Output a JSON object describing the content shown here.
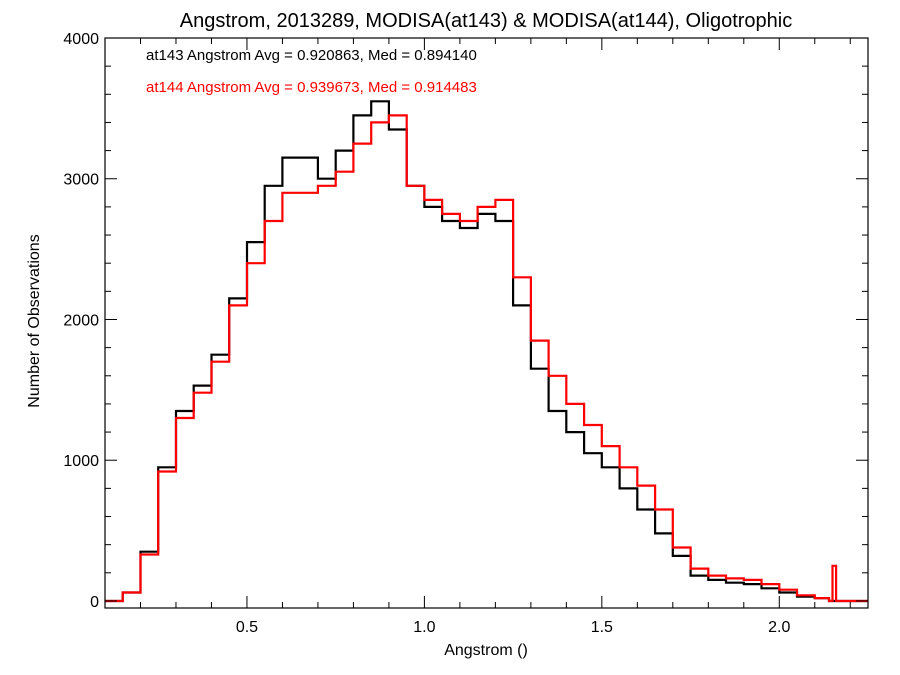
{
  "chart_data": {
    "type": "line",
    "title": "Angstrom, 2013289, MODISA(at143) & MODISA(at144), Oligotrophic",
    "xlabel": "Angstrom ()",
    "ylabel": "Number of Observations",
    "xlim": [
      0.1,
      2.25
    ],
    "ylim": [
      -50,
      4000
    ],
    "xticks": [
      0.5,
      1.0,
      1.5,
      2.0
    ],
    "xtick_labels": [
      "0.5",
      "1.0",
      "1.5",
      "2.0"
    ],
    "yticks": [
      0,
      1000,
      2000,
      3000,
      4000
    ],
    "ytick_labels": [
      "0",
      "1000",
      "2000",
      "3000",
      "4000"
    ],
    "step": true,
    "grid": false,
    "annotations": [
      {
        "text": "at143 Angstrom Avg = 0.920863, Med = 0.894140",
        "color": "#000000"
      },
      {
        "text": "at144 Angstrom Avg = 0.939673, Med = 0.914483",
        "color": "#ff0000"
      }
    ],
    "series": [
      {
        "color": "#000000",
        "x": [
          0.1,
          0.15,
          0.2,
          0.25,
          0.3,
          0.35,
          0.4,
          0.45,
          0.5,
          0.55,
          0.6,
          0.65,
          0.7,
          0.75,
          0.8,
          0.85,
          0.9,
          0.95,
          1.0,
          1.05,
          1.1,
          1.15,
          1.2,
          1.25,
          1.3,
          1.35,
          1.4,
          1.45,
          1.5,
          1.55,
          1.6,
          1.65,
          1.7,
          1.75,
          1.8,
          1.85,
          1.9,
          1.95,
          2.0,
          2.05,
          2.1,
          2.14,
          2.16,
          2.25
        ],
        "y": [
          0,
          60,
          350,
          950,
          1350,
          1530,
          1750,
          2150,
          2550,
          2950,
          3150,
          3150,
          3000,
          3200,
          3450,
          3550,
          3350,
          2950,
          2800,
          2700,
          2650,
          2750,
          2700,
          2100,
          1650,
          1350,
          1200,
          1050,
          950,
          800,
          650,
          480,
          320,
          180,
          150,
          130,
          120,
          90,
          60,
          30,
          20,
          0,
          0,
          0
        ]
      },
      {
        "color": "#ff0000",
        "x": [
          0.1,
          0.15,
          0.2,
          0.25,
          0.3,
          0.35,
          0.4,
          0.45,
          0.5,
          0.55,
          0.6,
          0.65,
          0.7,
          0.75,
          0.8,
          0.85,
          0.9,
          0.95,
          1.0,
          1.05,
          1.1,
          1.15,
          1.2,
          1.25,
          1.3,
          1.35,
          1.4,
          1.45,
          1.5,
          1.55,
          1.6,
          1.65,
          1.7,
          1.75,
          1.8,
          1.85,
          1.9,
          1.95,
          2.0,
          2.05,
          2.1,
          2.14,
          2.15,
          2.16,
          2.25
        ],
        "y": [
          0,
          60,
          330,
          920,
          1300,
          1480,
          1700,
          2100,
          2400,
          2700,
          2900,
          2900,
          2950,
          3050,
          3250,
          3400,
          3450,
          2950,
          2850,
          2750,
          2700,
          2800,
          2850,
          2300,
          1850,
          1600,
          1400,
          1250,
          1100,
          950,
          820,
          650,
          380,
          230,
          180,
          160,
          150,
          120,
          80,
          40,
          20,
          0,
          250,
          0,
          0
        ]
      }
    ]
  }
}
